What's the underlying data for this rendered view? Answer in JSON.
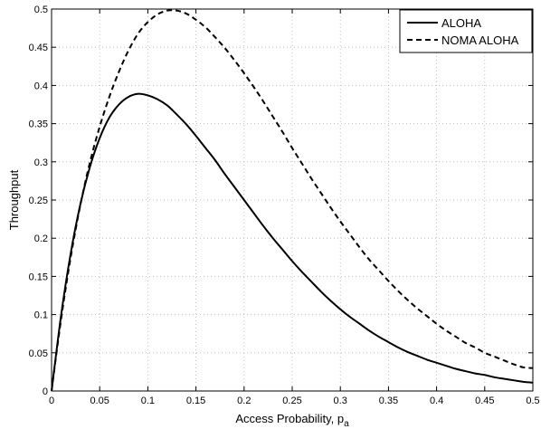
{
  "chart_data": {
    "type": "line",
    "xlabel": "Access Probability, p",
    "xlabel_subscript": "a",
    "ylabel": "Throughput",
    "xlim": [
      0,
      0.5
    ],
    "ylim": [
      0,
      0.5
    ],
    "xticks": [
      0,
      0.05,
      0.1,
      0.15,
      0.2,
      0.25,
      0.3,
      0.35,
      0.4,
      0.45,
      0.5
    ],
    "xtick_labels": [
      "0",
      "0.05",
      "0.1",
      "0.15",
      "0.2",
      "0.25",
      "0.3",
      "0.35",
      "0.4",
      "0.45",
      "0.5"
    ],
    "yticks": [
      0,
      0.05,
      0.1,
      0.15,
      0.2,
      0.25,
      0.3,
      0.35,
      0.4,
      0.45,
      0.5
    ],
    "ytick_labels": [
      "0",
      "0.05",
      "0.1",
      "0.15",
      "0.2",
      "0.25",
      "0.3",
      "0.35",
      "0.4",
      "0.45",
      "0.5"
    ],
    "grid": true,
    "legend_position": "top-right",
    "x": [
      0,
      0.01,
      0.02,
      0.03,
      0.04,
      0.05,
      0.06,
      0.07,
      0.08,
      0.09,
      0.1,
      0.11,
      0.12,
      0.13,
      0.14,
      0.15,
      0.16,
      0.17,
      0.18,
      0.19,
      0.2,
      0.21,
      0.22,
      0.23,
      0.24,
      0.25,
      0.26,
      0.27,
      0.28,
      0.29,
      0.3,
      0.31,
      0.32,
      0.33,
      0.34,
      0.35,
      0.36,
      0.37,
      0.38,
      0.39,
      0.4,
      0.41,
      0.42,
      0.43,
      0.44,
      0.45,
      0.46,
      0.47,
      0.48,
      0.49,
      0.5
    ],
    "series": [
      {
        "name": "ALOHA",
        "style": "solid",
        "color": "#000000",
        "values": [
          0,
          0.1,
          0.181,
          0.245,
          0.294,
          0.331,
          0.358,
          0.375,
          0.385,
          0.389,
          0.387,
          0.382,
          0.374,
          0.362,
          0.349,
          0.334,
          0.318,
          0.302,
          0.284,
          0.267,
          0.25,
          0.233,
          0.216,
          0.2,
          0.185,
          0.17,
          0.156,
          0.143,
          0.13,
          0.118,
          0.107,
          0.097,
          0.088,
          0.079,
          0.071,
          0.064,
          0.057,
          0.051,
          0.046,
          0.041,
          0.037,
          0.033,
          0.029,
          0.026,
          0.023,
          0.021,
          0.018,
          0.016,
          0.014,
          0.012,
          0.011
        ]
      },
      {
        "name": "NOMA ALOHA",
        "style": "dashed",
        "color": "#000000",
        "values": [
          0,
          0.095,
          0.176,
          0.244,
          0.3,
          0.346,
          0.385,
          0.418,
          0.446,
          0.468,
          0.483,
          0.493,
          0.498,
          0.498,
          0.494,
          0.486,
          0.476,
          0.463,
          0.449,
          0.433,
          0.416,
          0.398,
          0.379,
          0.359,
          0.339,
          0.318,
          0.298,
          0.278,
          0.259,
          0.24,
          0.222,
          0.205,
          0.188,
          0.172,
          0.158,
          0.144,
          0.131,
          0.119,
          0.108,
          0.098,
          0.088,
          0.079,
          0.071,
          0.063,
          0.057,
          0.05,
          0.045,
          0.04,
          0.035,
          0.031,
          0.03
        ]
      }
    ]
  }
}
